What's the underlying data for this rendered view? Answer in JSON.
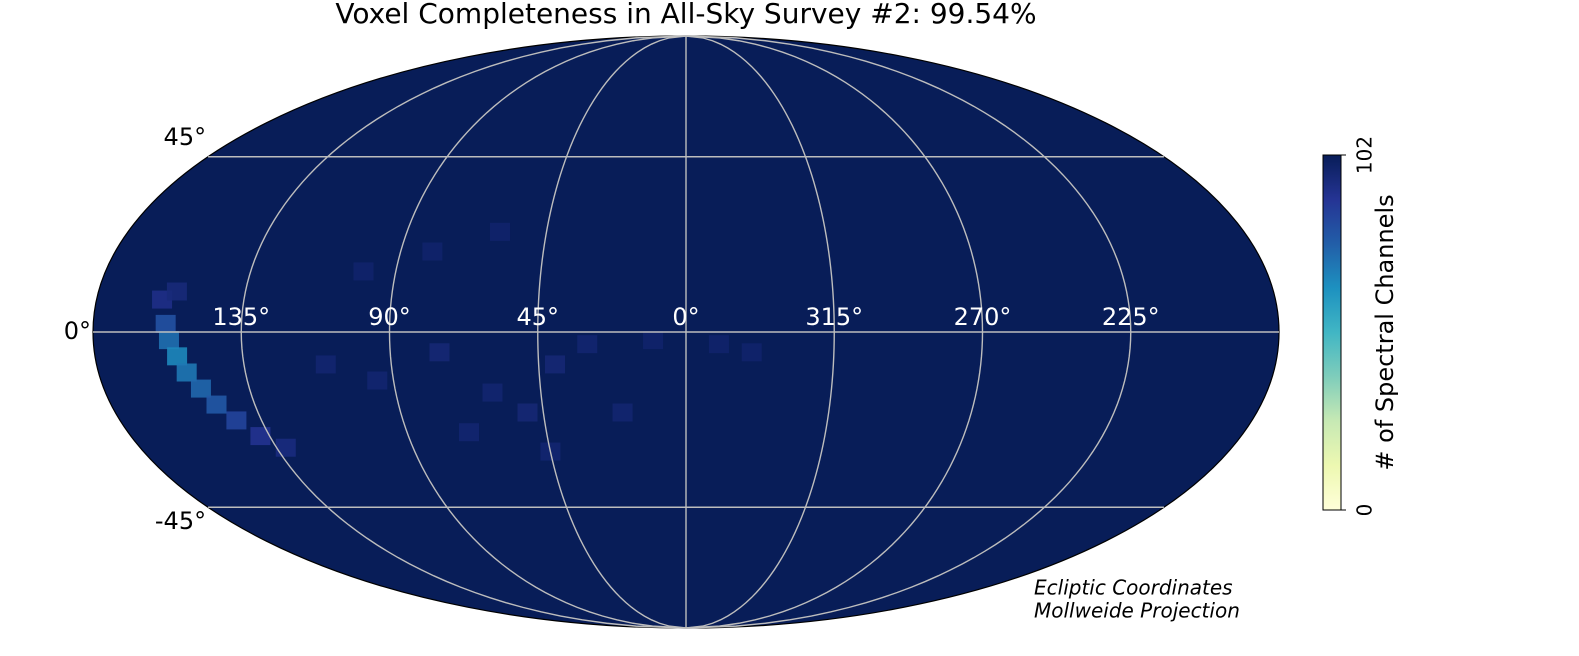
{
  "chart_data": {
    "type": "mollweide-map",
    "title": "Voxel Completeness in All-Sky Survey #2: 99.54%",
    "annotations": [
      "Ecliptic Coordinates",
      "Mollweide Projection"
    ],
    "xticks": [
      {
        "value": 135,
        "label": "135°"
      },
      {
        "value": 90,
        "label": "90°"
      },
      {
        "value": 45,
        "label": "45°"
      },
      {
        "value": 0,
        "label": "0°"
      },
      {
        "value": 315,
        "label": "315°"
      },
      {
        "value": 270,
        "label": "270°"
      },
      {
        "value": 225,
        "label": "225°"
      }
    ],
    "yticks": [
      {
        "value": 45,
        "label": "45°"
      },
      {
        "value": 0,
        "label": "0°"
      },
      {
        "value": -45,
        "label": "-45°"
      }
    ],
    "grid": true,
    "colorbar": {
      "label": "# of Spectral Channels",
      "clim": [
        0,
        102
      ],
      "ticks": [
        0,
        102
      ],
      "colormap": [
        "#ffffd9",
        "#edf8b1",
        "#c7e9b4",
        "#7fcdbb",
        "#41b6c4",
        "#1d91c0",
        "#225ea8",
        "#253494",
        "#081d58"
      ]
    },
    "tiles": {
      "lon": [
        158,
        157,
        155,
        153,
        150,
        147,
        143,
        138,
        132,
        160,
        156,
        110,
        95,
        75,
        60,
        50,
        40,
        30,
        20,
        10,
        350,
        340,
        100,
        80,
        60,
        45,
        70
      ],
      "lat": [
        2,
        -2,
        -6,
        -10,
        -14,
        -18,
        -22,
        -26,
        -29,
        8,
        10,
        -8,
        -12,
        -5,
        -15,
        -20,
        -8,
        -3,
        -20,
        -2,
        -3,
        -5,
        15,
        20,
        25,
        -30,
        -25
      ],
      "values": [
        80,
        72,
        66,
        70,
        74,
        78,
        84,
        90,
        94,
        92,
        95,
        97,
        97,
        96,
        97,
        96,
        96,
        97,
        97,
        98,
        98,
        98,
        98,
        98,
        98,
        97,
        97
      ]
    }
  }
}
